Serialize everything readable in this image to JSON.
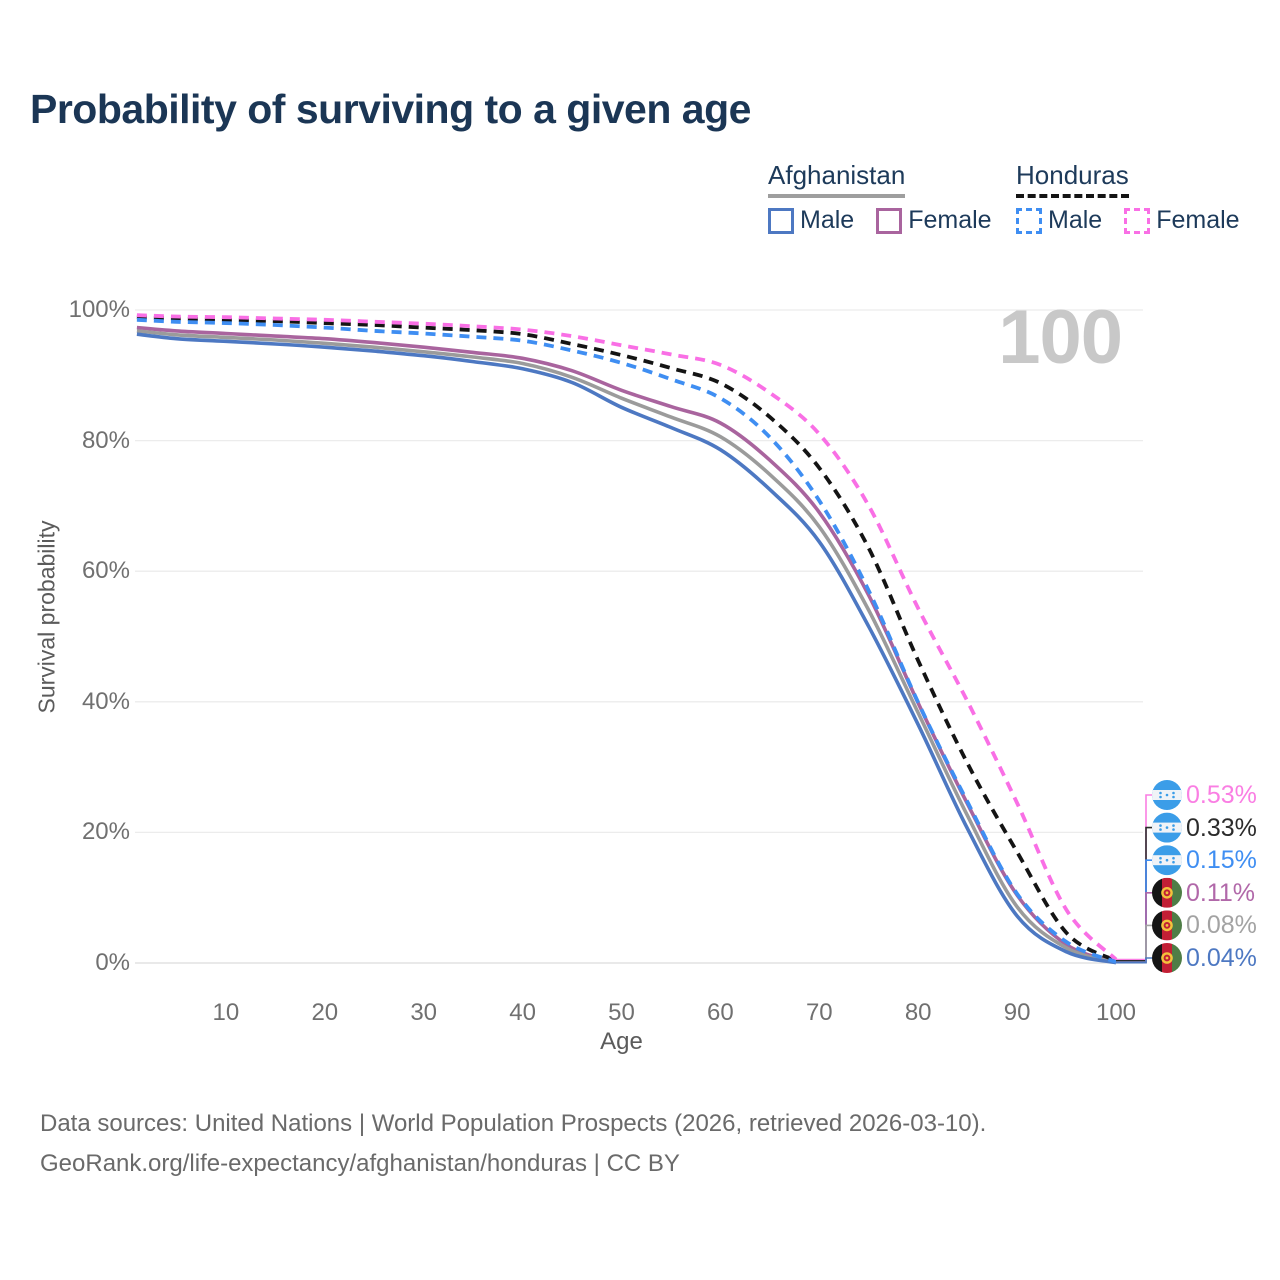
{
  "title": "Probability of surviving to a given age",
  "watermark": "100",
  "legend": {
    "groups": [
      {
        "country": "Afghanistan",
        "line_style": "solid",
        "underline_color": "#9e9e9e",
        "items": [
          {
            "label": "Male",
            "color": "#4d78c2",
            "dashed": false
          },
          {
            "label": "Female",
            "color": "#a9649e",
            "dashed": false
          }
        ]
      },
      {
        "country": "Honduras",
        "line_style": "dashed",
        "underline_color": "#141414",
        "items": [
          {
            "label": "Male",
            "color": "#3f8ef2",
            "dashed": true
          },
          {
            "label": "Female",
            "color": "#f96fe5",
            "dashed": true
          }
        ]
      }
    ]
  },
  "y_axis": {
    "label": "Survival probability",
    "ticks": [
      {
        "label": "100%",
        "value": 100
      },
      {
        "label": "80%",
        "value": 80
      },
      {
        "label": "60%",
        "value": 60
      },
      {
        "label": "40%",
        "value": 40
      },
      {
        "label": "20%",
        "value": 20
      },
      {
        "label": "0%",
        "value": 0
      }
    ]
  },
  "x_axis": {
    "label": "Age",
    "ticks": [
      {
        "label": "10",
        "value": 10
      },
      {
        "label": "20",
        "value": 20
      },
      {
        "label": "30",
        "value": 30
      },
      {
        "label": "40",
        "value": 40
      },
      {
        "label": "50",
        "value": 50
      },
      {
        "label": "60",
        "value": 60
      },
      {
        "label": "70",
        "value": 70
      },
      {
        "label": "80",
        "value": 80
      },
      {
        "label": "90",
        "value": 90
      },
      {
        "label": "100",
        "value": 100
      }
    ]
  },
  "chart_data": {
    "type": "line",
    "title": "Probability of surviving to a given age",
    "xlabel": "Age",
    "ylabel": "Survival probability",
    "xlim": [
      0,
      105
    ],
    "ylim": [
      0,
      100
    ],
    "grid": "horizontal",
    "legend_position": "top-right",
    "x": [
      1,
      5,
      10,
      15,
      20,
      25,
      30,
      35,
      40,
      45,
      50,
      55,
      60,
      65,
      70,
      75,
      80,
      85,
      90,
      95,
      100
    ],
    "series": [
      {
        "id": "afg_female",
        "name": "Afghanistan Female",
        "color": "#a9649e",
        "dashed": false,
        "values": [
          97.3,
          96.8,
          96.4,
          96.0,
          95.6,
          95.0,
          94.3,
          93.5,
          92.6,
          90.7,
          87.7,
          85.2,
          82.7,
          77.0,
          69.0,
          56.3,
          39.8,
          24.3,
          10.4,
          2.8,
          0.11
        ]
      },
      {
        "id": "afg_total",
        "name": "Afghanistan",
        "color": "#9b9b9b",
        "dashed": false,
        "values": [
          96.8,
          96.2,
          95.8,
          95.4,
          94.9,
          94.3,
          93.6,
          92.8,
          91.8,
          89.7,
          86.5,
          83.6,
          80.6,
          74.8,
          66.8,
          54.0,
          38.3,
          22.5,
          8.6,
          2.3,
          0.08
        ]
      },
      {
        "id": "afg_male",
        "name": "Afghanistan Male",
        "color": "#4d78c2",
        "dashed": false,
        "values": [
          96.3,
          95.6,
          95.2,
          94.8,
          94.3,
          93.7,
          93.0,
          92.1,
          91.0,
          88.9,
          85.1,
          82.0,
          78.6,
          72.5,
          64.5,
          51.5,
          36.5,
          20.5,
          7.2,
          1.7,
          0.04
        ]
      },
      {
        "id": "hond_total",
        "name": "Honduras",
        "color": "#141414",
        "dashed": true,
        "values": [
          98.9,
          98.7,
          98.5,
          98.3,
          98.0,
          97.7,
          97.3,
          96.9,
          96.3,
          94.8,
          93.1,
          91.1,
          88.8,
          83.6,
          75.8,
          63.5,
          46.3,
          30.5,
          17.0,
          4.6,
          0.33
        ]
      },
      {
        "id": "hond_female",
        "name": "Honduras Female",
        "color": "#f96fe5",
        "dashed": true,
        "values": [
          99.2,
          99.0,
          98.9,
          98.7,
          98.5,
          98.2,
          97.9,
          97.5,
          97.0,
          96.0,
          94.6,
          93.2,
          91.6,
          87.3,
          81.0,
          70.0,
          54.3,
          40.0,
          24.5,
          8.1,
          0.53
        ]
      },
      {
        "id": "hond_male",
        "name": "Honduras Male",
        "color": "#3f8ef2",
        "dashed": true,
        "values": [
          98.5,
          98.2,
          98.0,
          97.7,
          97.3,
          96.8,
          96.4,
          95.9,
          95.3,
          93.8,
          91.9,
          89.4,
          86.5,
          80.5,
          70.8,
          57.0,
          39.9,
          24.6,
          10.6,
          3.2,
          0.15
        ]
      }
    ]
  },
  "end_labels": [
    {
      "value_label": "0.53%",
      "color": "#fa7ee3",
      "flag": "honduras",
      "series": "hond_female"
    },
    {
      "value_label": "0.33%",
      "color": "#2b2b2b",
      "flag": "honduras",
      "series": "hond_total"
    },
    {
      "value_label": "0.15%",
      "color": "#3f8ef2",
      "flag": "honduras",
      "series": "hond_male"
    },
    {
      "value_label": "0.11%",
      "color": "#b168a9",
      "flag": "afghanistan",
      "series": "afg_female"
    },
    {
      "value_label": "0.08%",
      "color": "#a3a3a3",
      "flag": "afghanistan",
      "series": "afg_total"
    },
    {
      "value_label": "0.04%",
      "color": "#4d78c2",
      "flag": "afghanistan",
      "series": "afg_male"
    }
  ],
  "colors": {
    "title_text": "#1b3655",
    "axis_text": "#707070",
    "gridline": "#ececec",
    "watermark": "#c8c8c8",
    "footer_text": "#6a6a6a"
  },
  "footer": {
    "line1": "Data sources: United Nations | World Population Prospects (2026, retrieved 2026-03-10).",
    "line2": "GeoRank.org/life-expectancy/afghanistan/honduras | CC BY"
  }
}
